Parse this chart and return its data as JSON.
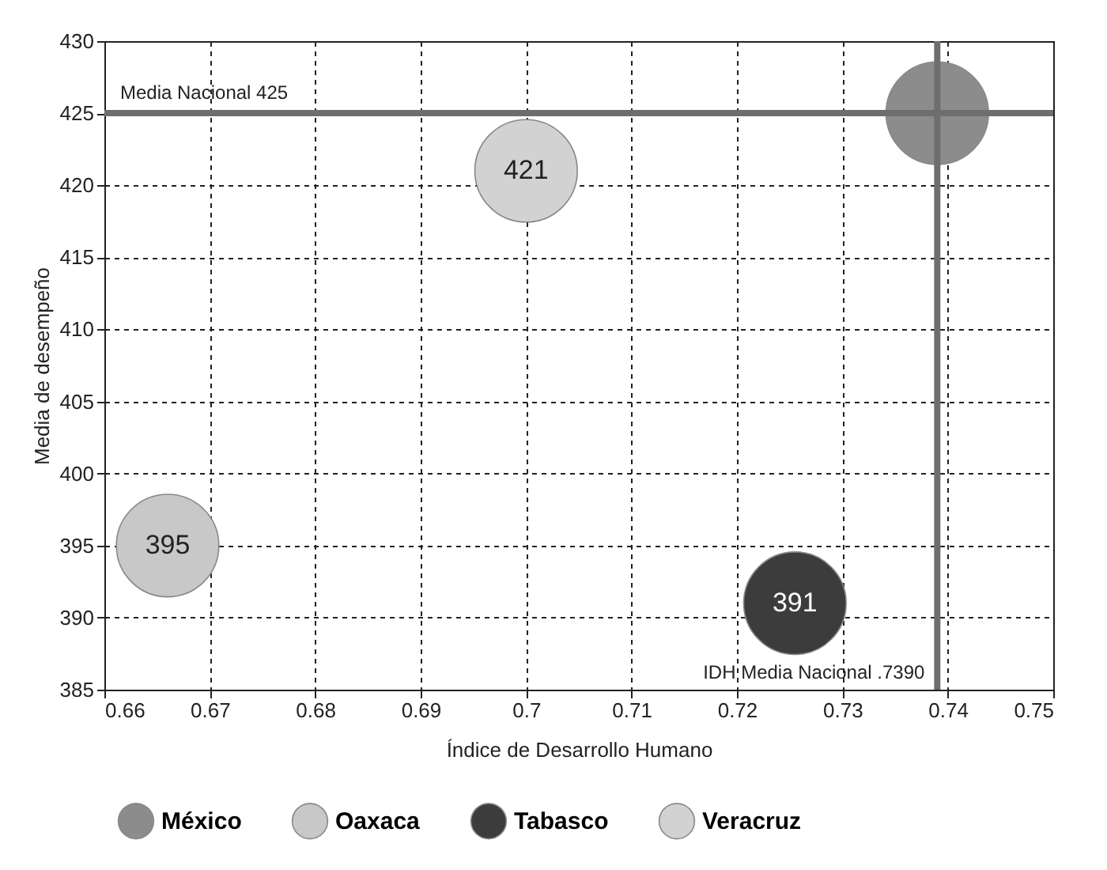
{
  "chart_data": {
    "type": "scatter",
    "xlabel": "Índice de Desarrollo Humano",
    "ylabel": "Media de desempeño",
    "xlim": [
      0.66,
      0.75
    ],
    "xticks": [
      0.66,
      0.67,
      0.68,
      0.69,
      0.7,
      0.71,
      0.72,
      0.73,
      0.74,
      0.75
    ],
    "ylim": [
      385,
      430
    ],
    "yticks": [
      385,
      390,
      395,
      400,
      405,
      410,
      415,
      420,
      425,
      430
    ],
    "grid": true,
    "legend": "bottom",
    "marker": "circle",
    "series": [
      {
        "name": "México",
        "color": "#8c8c8c",
        "x": [
          0.739
        ],
        "values": [
          425
        ]
      },
      {
        "name": "Oaxaca",
        "color": "#c8c8c8",
        "x": [
          0.666
        ],
        "values": [
          395
        ],
        "value_labels": [
          "395"
        ]
      },
      {
        "name": "Tabasco",
        "color": "#3c3c3c",
        "x": [
          0.7255
        ],
        "values": [
          391
        ],
        "value_labels": [
          "391"
        ]
      },
      {
        "name": "Veracruz",
        "color": "#d2d2d2",
        "x": [
          0.7
        ],
        "values": [
          421
        ],
        "value_labels": [
          "421"
        ]
      }
    ],
    "ref_lines": [
      {
        "axis": "y",
        "value": 425,
        "label": "Media Nacional 425",
        "color": "#6e6e6e"
      },
      {
        "axis": "x",
        "value": 0.739,
        "label": "IDH Media Nacional .7390",
        "color": "#6e6e6e"
      }
    ]
  }
}
